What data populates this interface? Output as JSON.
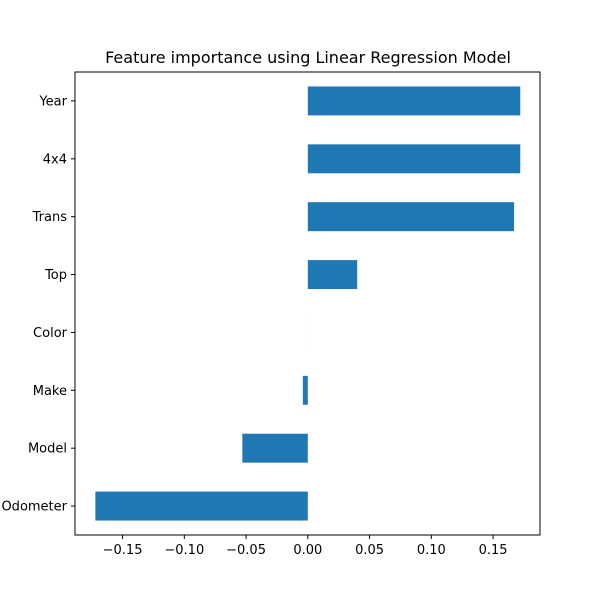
{
  "chart_data": {
    "type": "bar",
    "orientation": "horizontal",
    "title": "Feature importance using Linear Regression Model",
    "xlabel": "",
    "ylabel": "",
    "categories": [
      "Year",
      "4x4",
      "Trans",
      "Top",
      "Color",
      "Make",
      "Model",
      "Odometer"
    ],
    "values": [
      0.172,
      0.172,
      0.167,
      0.04,
      0.0,
      -0.004,
      -0.053,
      -0.172
    ],
    "xlim": [
      -0.1885,
      0.188
    ],
    "xticks": [
      -0.15,
      -0.1,
      -0.05,
      0.0,
      0.05,
      0.1,
      0.15
    ],
    "xtick_labels": [
      "−0.15",
      "−0.10",
      "−0.05",
      "0.00",
      "0.05",
      "0.10",
      "0.15"
    ],
    "grid": false,
    "legend": "none",
    "bar_color": "#1f77b4"
  }
}
